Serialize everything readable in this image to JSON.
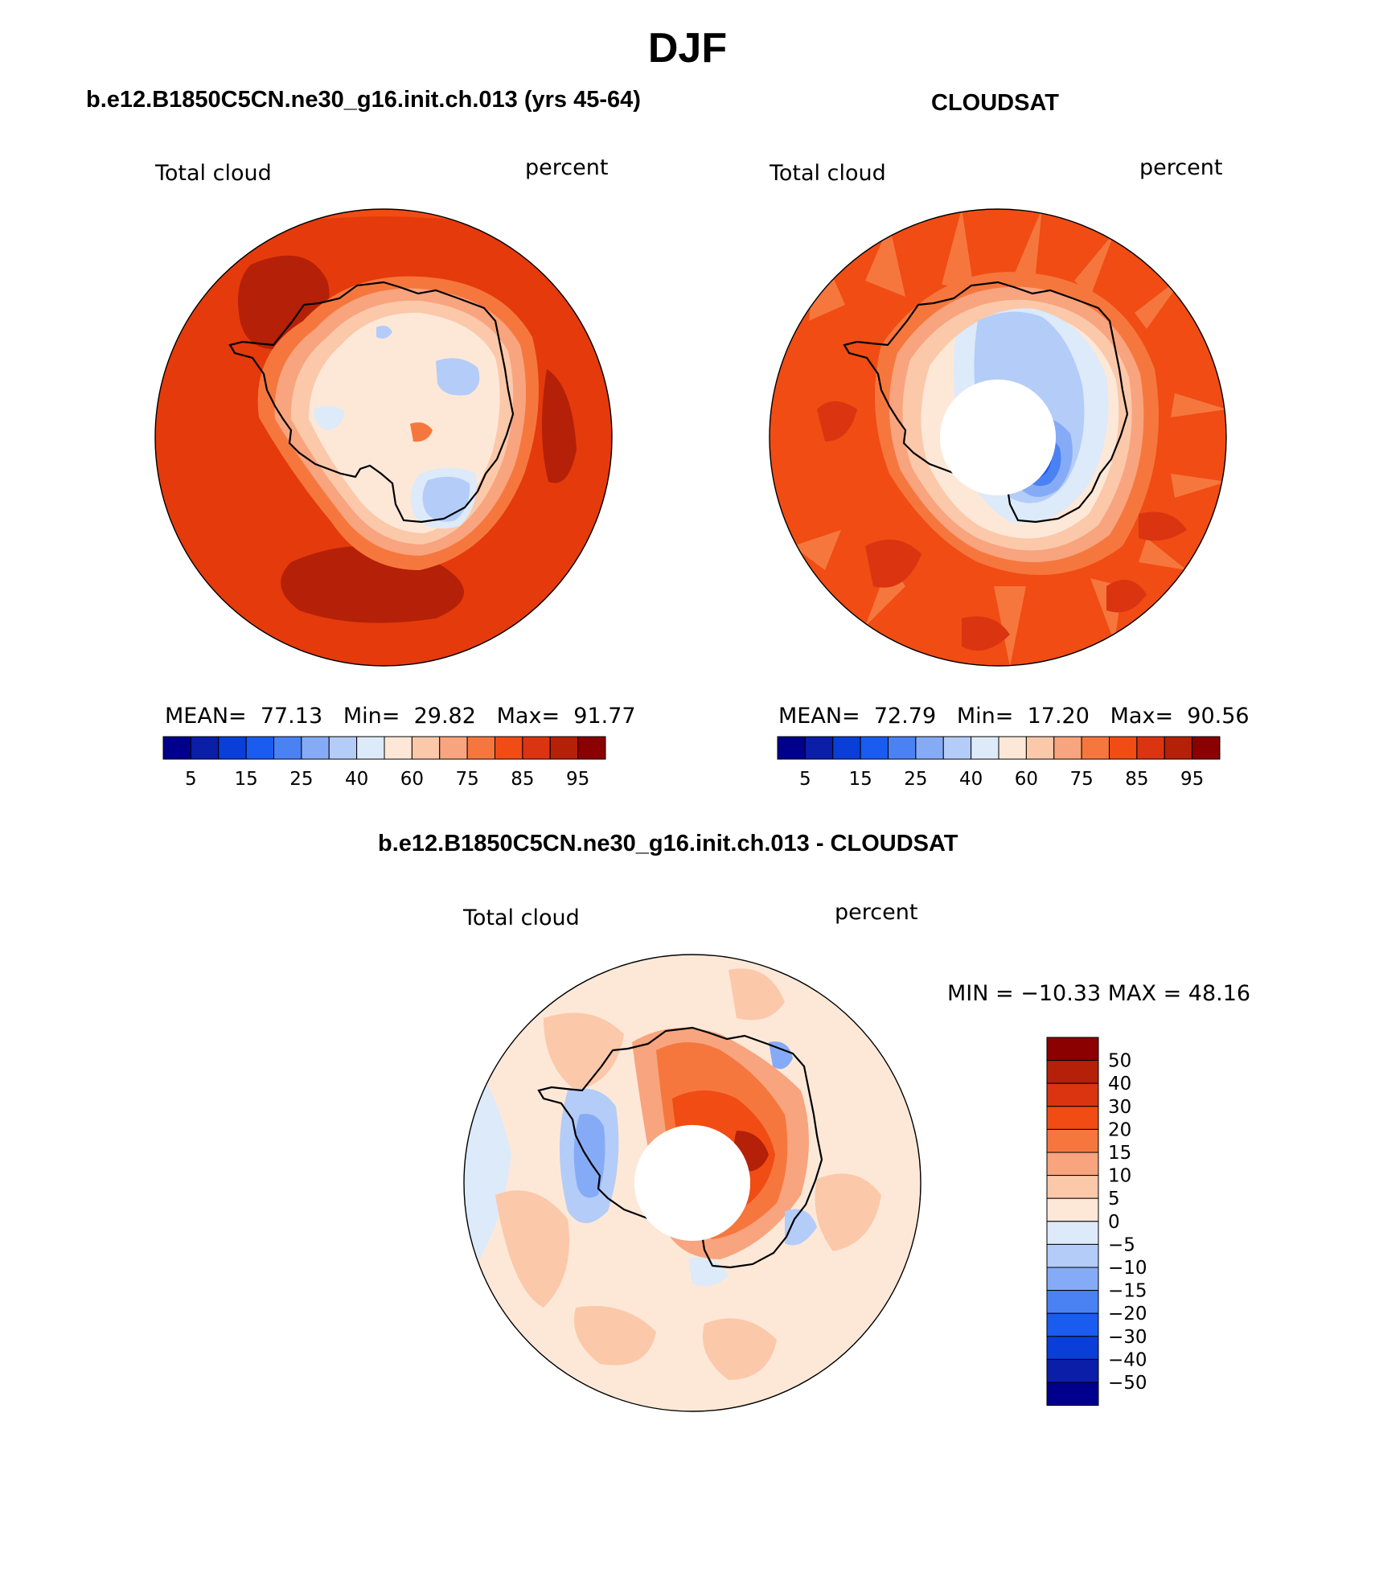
{
  "title": "DJF",
  "panels": [
    {
      "title": "b.e12.B1850C5CN.ne30_g16.init.ch.013 (yrs 45-64)",
      "left_label": "Total cloud",
      "right_label": "percent",
      "stats": {
        "mean_label": "MEAN=",
        "mean": "77.13",
        "min_label": "Min=",
        "min": "29.82",
        "max_label": "Max=",
        "max": "91.77"
      }
    },
    {
      "title": "CLOUDSAT",
      "left_label": "Total cloud",
      "right_label": "percent",
      "stats": {
        "mean_label": "MEAN=",
        "mean": "72.79",
        "min_label": "Min=",
        "min": "17.20",
        "max_label": "Max=",
        "max": "90.56"
      }
    },
    {
      "title": "b.e12.B1850C5CN.ne30_g16.init.ch.013 - CLOUDSAT",
      "left_label": "Total cloud",
      "right_label": "percent",
      "stats": {
        "text": "MIN = −10.33 MAX =  48.16"
      }
    }
  ],
  "colorbar_abs": {
    "colors": [
      "#00008c",
      "#0a1ea8",
      "#0a3ed8",
      "#1a5cf0",
      "#4a82f4",
      "#86abf6",
      "#b4ccf8",
      "#dceaf9",
      "#fde8d8",
      "#fbc8aa",
      "#f8a47e",
      "#f6773e",
      "#f04c14",
      "#da3410",
      "#b52008",
      "#8b0000"
    ],
    "labels": [
      "5",
      "15",
      "25",
      "40",
      "60",
      "75",
      "85",
      "95"
    ]
  },
  "colorbar_diff": {
    "colors": [
      "#8b0000",
      "#b52008",
      "#da3410",
      "#f04c14",
      "#f6773e",
      "#f8a47e",
      "#fbc8aa",
      "#fde8d8",
      "#dceaf9",
      "#b4ccf8",
      "#86abf6",
      "#4a82f4",
      "#1a5cf0",
      "#0a3ed8",
      "#0a1ea8",
      "#00008c"
    ],
    "labels": [
      "50",
      "40",
      "30",
      "20",
      "15",
      "10",
      "5",
      "0",
      "−5",
      "−10",
      "−15",
      "−20",
      "−30",
      "−40",
      "−50"
    ]
  }
}
